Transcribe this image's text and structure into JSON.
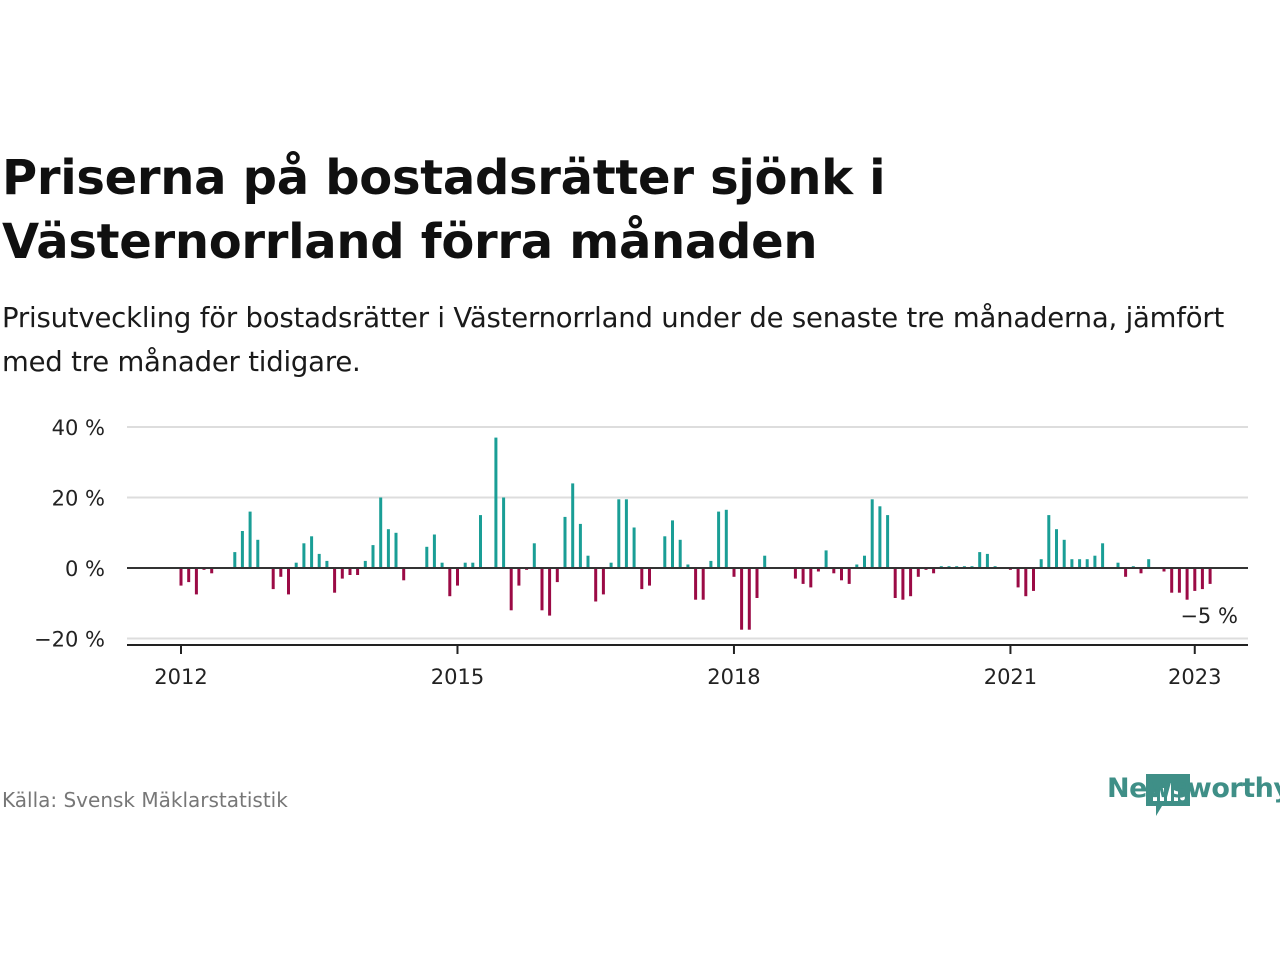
{
  "title": "Priserna på bostadsrätter sjönk i Västernorrland förra månaden",
  "subtitle": "Prisutveckling för bostadsrätter i Västernorrland under de senaste tre månaderna, jämfört med tre månader tidigare.",
  "source": "Källa: Svensk Mäklarstatistik",
  "brand": "Newsworthy",
  "colors": {
    "positive": "#1a9e96",
    "negative": "#9b0a45",
    "brand": "#3f8f87"
  },
  "chart_data": {
    "type": "bar",
    "x_start": "2012-01",
    "xlabel": "",
    "ylabel": "",
    "ylim": [
      -20,
      40
    ],
    "yticks": [
      40,
      20,
      0,
      -20
    ],
    "ytick_labels": [
      "40 %",
      "20 %",
      "0 %",
      "−20 %"
    ],
    "xticks": [
      2012,
      2015,
      2018,
      2021,
      2023
    ],
    "xtick_labels": [
      "2012",
      "2015",
      "2018",
      "2021",
      "2023"
    ],
    "grid": true,
    "last_label": "−5 %",
    "values": [
      -5,
      -4,
      -7.5,
      -0.5,
      -1.5,
      0,
      0,
      4.5,
      10.5,
      16,
      8,
      0,
      -6,
      -2.5,
      -7.5,
      1.5,
      7,
      9,
      4,
      2,
      -7,
      -3,
      -2,
      -2,
      2,
      6.5,
      20,
      11,
      10,
      -3.5,
      0,
      0,
      6,
      9.5,
      1.5,
      -8,
      -5,
      1.5,
      1.5,
      15,
      0,
      37,
      20,
      -12,
      -5,
      -0.5,
      7,
      -12,
      -13.5,
      -4,
      14.5,
      24,
      12.5,
      3.5,
      -9.5,
      -7.5,
      1.5,
      19.5,
      19.5,
      11.5,
      -6,
      -5,
      0,
      9,
      13.5,
      8,
      1,
      -9,
      -9,
      2,
      16,
      16.5,
      -2.5,
      -17.5,
      -17.5,
      -8.5,
      3.5,
      0,
      0,
      0,
      -3,
      -4.5,
      -5.5,
      -1,
      5,
      -1.5,
      -3.5,
      -4.5,
      1,
      3.5,
      19.5,
      17.5,
      15,
      -8.5,
      -9,
      -8,
      -2.5,
      -0.5,
      -1.5,
      0.5,
      0.5,
      0.5,
      0.5,
      0.5,
      4.5,
      4,
      0.5,
      0,
      -0.5,
      -5.5,
      -8,
      -6.5,
      2.5,
      15,
      11,
      8,
      2.5,
      2.5,
      2.5,
      3.5,
      7,
      0,
      1.5,
      -2.5,
      0.5,
      -1.5,
      2.5,
      0,
      -1,
      -7,
      -7,
      -9,
      -6.5,
      -6,
      -4.5
    ]
  }
}
